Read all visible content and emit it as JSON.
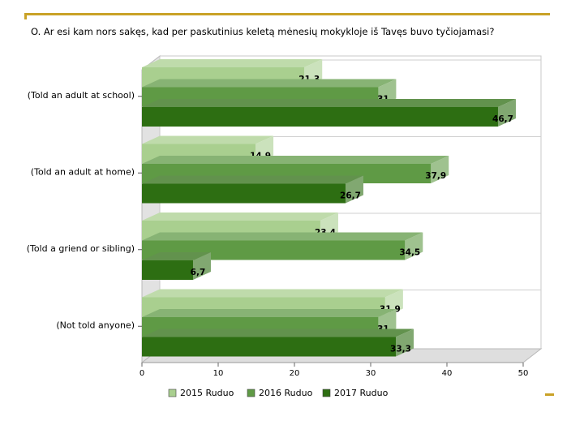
{
  "page": {
    "title": "O. Ar esi kam nors sakęs, kad per paskutinius keletą mėnesių mokykloje iš Tavęs buvo tyčiojamasi?"
  },
  "chart_data": {
    "type": "bar",
    "orientation": "horizontal",
    "three_d": true,
    "title": "O. Ar esi kam nors sakęs, kad per paskutinius keletą mėnesių mokykloje iš Tavęs buvo tyčiojamasi?",
    "categories": [
      "(Told an adult at school)",
      "(Told an adult at home)",
      "(Told a griend or sibling)",
      "(Not told anyone)"
    ],
    "series": [
      {
        "name": "2015 Ruduo",
        "values": [
          21.3,
          14.9,
          23.4,
          31.9
        ],
        "labels": [
          "21,3",
          "14,9",
          "23,4",
          "31,9"
        ],
        "color": "#a9cf8f"
      },
      {
        "name": "2016 Ruduo",
        "values": [
          31,
          37.9,
          34.5,
          31
        ],
        "labels": [
          "31",
          "37,9",
          "34,5",
          "31"
        ],
        "color": "#5f9a45"
      },
      {
        "name": "2017 Ruduo",
        "values": [
          46.7,
          26.7,
          6.7,
          33.3
        ],
        "labels": [
          "46,7",
          "26,7",
          "6,7",
          "33,3"
        ],
        "color": "#2d6e12"
      }
    ],
    "xlim": [
      0,
      50
    ],
    "xticks": [
      "0",
      "10",
      "20",
      "30",
      "40",
      "50"
    ],
    "grid": true,
    "legend": "bottom"
  }
}
